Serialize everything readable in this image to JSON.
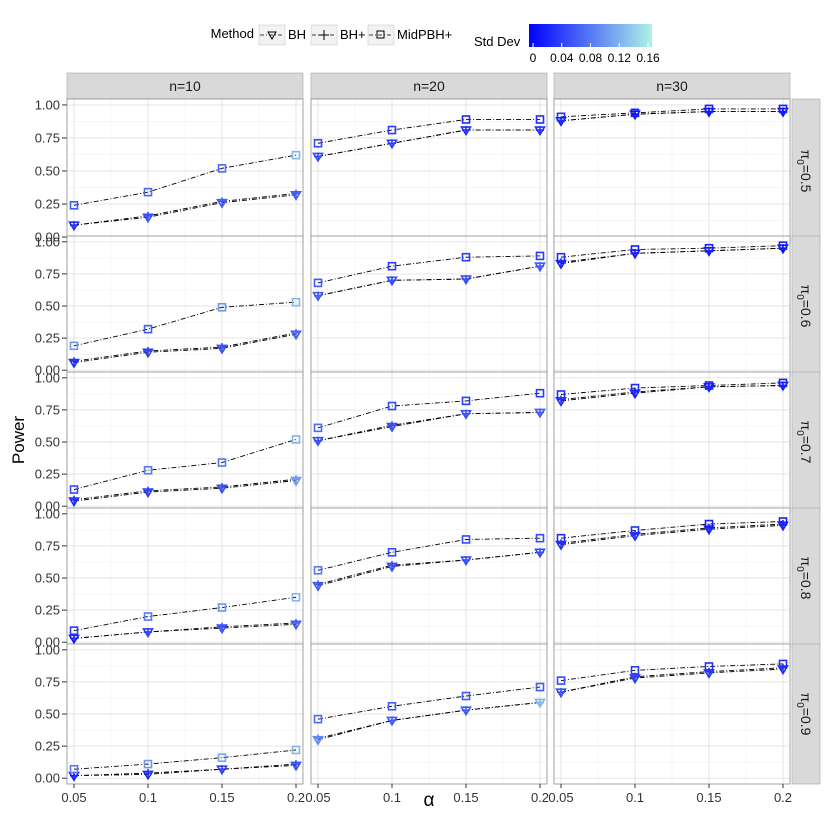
{
  "chart_data": {
    "type": "line",
    "xlabel": "α",
    "ylabel": "Power",
    "x": [
      0.05,
      0.1,
      0.15,
      0.2
    ],
    "x_tick_labels": [
      "0.05",
      "0.1",
      "0.15",
      "0.2"
    ],
    "ylim": [
      0,
      1
    ],
    "y_ticks": [
      0,
      0.25,
      0.5,
      0.75,
      1
    ],
    "y_tick_labels": [
      "0.00",
      "0.25",
      "0.50",
      "0.75",
      "1.00"
    ],
    "grid": true,
    "columns": [
      "n=10",
      "n=20",
      "n=30"
    ],
    "rows": [
      {
        "pi": "0.5",
        "prefix": "π",
        "sub": "0",
        "label": "π0=0.5"
      },
      {
        "pi": "0.6",
        "prefix": "π",
        "sub": "0",
        "label": "π0=0.6"
      },
      {
        "pi": "0.7",
        "prefix": "π",
        "sub": "0",
        "label": "π0=0.7"
      },
      {
        "pi": "0.8",
        "prefix": "π",
        "sub": "0",
        "label": "π0=0.8"
      },
      {
        "pi": "0.9",
        "prefix": "π",
        "sub": "0",
        "label": "π0=0.9"
      }
    ],
    "legend": {
      "method_title": "Method",
      "methods": [
        "BH",
        "BH+",
        "MidPBH+"
      ],
      "color_title": "Std Dev",
      "color_ticks": [
        "0",
        "0.04",
        "0.08",
        "0.12",
        "0.16"
      ],
      "color_range": [
        0,
        0.16
      ],
      "color_low": "#0000ff",
      "color_high": "#aef2e8",
      "placement": "top"
    },
    "panels": [
      {
        "row": 0,
        "col": 0,
        "series": [
          {
            "name": "BH",
            "values": [
              0.09,
              0.15,
              0.26,
              0.32
            ],
            "sd": [
              0.03,
              0.05,
              0.06,
              0.06
            ]
          },
          {
            "name": "BH+",
            "values": [
              0.09,
              0.16,
              0.27,
              0.33
            ],
            "sd": [
              0.03,
              0.05,
              0.06,
              0.06
            ]
          },
          {
            "name": "MidPBH+",
            "values": [
              0.24,
              0.34,
              0.52,
              0.62
            ],
            "sd": [
              0.06,
              0.07,
              0.07,
              0.12
            ]
          }
        ]
      },
      {
        "row": 0,
        "col": 1,
        "series": [
          {
            "name": "BH",
            "values": [
              0.61,
              0.71,
              0.81,
              0.81
            ],
            "sd": [
              0.05,
              0.04,
              0.03,
              0.03
            ]
          },
          {
            "name": "BH+",
            "values": [
              0.61,
              0.71,
              0.81,
              0.81
            ],
            "sd": [
              0.05,
              0.04,
              0.03,
              0.03
            ]
          },
          {
            "name": "MidPBH+",
            "values": [
              0.71,
              0.81,
              0.89,
              0.89
            ],
            "sd": [
              0.05,
              0.04,
              0.03,
              0.03
            ]
          }
        ]
      },
      {
        "row": 0,
        "col": 2,
        "series": [
          {
            "name": "BH",
            "values": [
              0.88,
              0.93,
              0.95,
              0.95
            ],
            "sd": [
              0.02,
              0.01,
              0.01,
              0.01
            ]
          },
          {
            "name": "BH+",
            "values": [
              0.88,
              0.93,
              0.95,
              0.95
            ],
            "sd": [
              0.02,
              0.01,
              0.01,
              0.01
            ]
          },
          {
            "name": "MidPBH+",
            "values": [
              0.91,
              0.94,
              0.97,
              0.97
            ],
            "sd": [
              0.03,
              0.02,
              0.02,
              0.02
            ]
          }
        ]
      },
      {
        "row": 1,
        "col": 0,
        "series": [
          {
            "name": "BH",
            "values": [
              0.06,
              0.14,
              0.17,
              0.28
            ],
            "sd": [
              0.03,
              0.04,
              0.05,
              0.06
            ]
          },
          {
            "name": "BH+",
            "values": [
              0.07,
              0.15,
              0.18,
              0.29
            ],
            "sd": [
              0.03,
              0.04,
              0.05,
              0.07
            ]
          },
          {
            "name": "MidPBH+",
            "values": [
              0.19,
              0.32,
              0.49,
              0.53
            ],
            "sd": [
              0.1,
              0.06,
              0.1,
              0.12
            ]
          }
        ]
      },
      {
        "row": 1,
        "col": 1,
        "series": [
          {
            "name": "BH",
            "values": [
              0.58,
              0.7,
              0.71,
              0.81
            ],
            "sd": [
              0.06,
              0.05,
              0.05,
              0.06
            ]
          },
          {
            "name": "BH+",
            "values": [
              0.58,
              0.7,
              0.71,
              0.81
            ],
            "sd": [
              0.06,
              0.05,
              0.05,
              0.06
            ]
          },
          {
            "name": "MidPBH+",
            "values": [
              0.68,
              0.81,
              0.88,
              0.89
            ],
            "sd": [
              0.06,
              0.04,
              0.04,
              0.04
            ]
          }
        ]
      },
      {
        "row": 1,
        "col": 2,
        "series": [
          {
            "name": "BH",
            "values": [
              0.83,
              0.91,
              0.93,
              0.95
            ],
            "sd": [
              0.02,
              0.02,
              0.02,
              0.01
            ]
          },
          {
            "name": "BH+",
            "values": [
              0.84,
              0.91,
              0.93,
              0.95
            ],
            "sd": [
              0.02,
              0.02,
              0.02,
              0.01
            ]
          },
          {
            "name": "MidPBH+",
            "values": [
              0.88,
              0.94,
              0.95,
              0.97
            ],
            "sd": [
              0.03,
              0.02,
              0.02,
              0.02
            ]
          }
        ]
      },
      {
        "row": 2,
        "col": 0,
        "series": [
          {
            "name": "BH",
            "values": [
              0.04,
              0.11,
              0.14,
              0.2
            ],
            "sd": [
              0.03,
              0.04,
              0.05,
              0.1
            ]
          },
          {
            "name": "BH+",
            "values": [
              0.05,
              0.12,
              0.15,
              0.21
            ],
            "sd": [
              0.03,
              0.04,
              0.05,
              0.1
            ]
          },
          {
            "name": "MidPBH+",
            "values": [
              0.13,
              0.28,
              0.34,
              0.52
            ],
            "sd": [
              0.05,
              0.08,
              0.08,
              0.12
            ]
          }
        ]
      },
      {
        "row": 2,
        "col": 1,
        "series": [
          {
            "name": "BH",
            "values": [
              0.51,
              0.62,
              0.72,
              0.73
            ],
            "sd": [
              0.05,
              0.05,
              0.05,
              0.06
            ]
          },
          {
            "name": "BH+",
            "values": [
              0.51,
              0.63,
              0.72,
              0.73
            ],
            "sd": [
              0.05,
              0.05,
              0.05,
              0.06
            ]
          },
          {
            "name": "MidPBH+",
            "values": [
              0.61,
              0.78,
              0.82,
              0.88
            ],
            "sd": [
              0.07,
              0.05,
              0.04,
              0.04
            ]
          }
        ]
      },
      {
        "row": 2,
        "col": 2,
        "series": [
          {
            "name": "BH",
            "values": [
              0.82,
              0.88,
              0.93,
              0.94
            ],
            "sd": [
              0.03,
              0.02,
              0.02,
              0.02
            ]
          },
          {
            "name": "BH+",
            "values": [
              0.83,
              0.89,
              0.93,
              0.94
            ],
            "sd": [
              0.03,
              0.02,
              0.02,
              0.02
            ]
          },
          {
            "name": "MidPBH+",
            "values": [
              0.87,
              0.92,
              0.94,
              0.96
            ],
            "sd": [
              0.03,
              0.03,
              0.02,
              0.02
            ]
          }
        ]
      },
      {
        "row": 3,
        "col": 0,
        "series": [
          {
            "name": "BH",
            "values": [
              0.03,
              0.08,
              0.11,
              0.14
            ],
            "sd": [
              0.02,
              0.04,
              0.05,
              0.06
            ]
          },
          {
            "name": "BH+",
            "values": [
              0.03,
              0.08,
              0.12,
              0.15
            ],
            "sd": [
              0.02,
              0.04,
              0.05,
              0.06
            ]
          },
          {
            "name": "MidPBH+",
            "values": [
              0.09,
              0.2,
              0.27,
              0.35
            ],
            "sd": [
              0.04,
              0.08,
              0.1,
              0.12
            ]
          }
        ]
      },
      {
        "row": 3,
        "col": 1,
        "series": [
          {
            "name": "BH",
            "values": [
              0.44,
              0.59,
              0.64,
              0.7
            ],
            "sd": [
              0.06,
              0.05,
              0.05,
              0.05
            ]
          },
          {
            "name": "BH+",
            "values": [
              0.45,
              0.6,
              0.64,
              0.7
            ],
            "sd": [
              0.06,
              0.05,
              0.05,
              0.05
            ]
          },
          {
            "name": "MidPBH+",
            "values": [
              0.56,
              0.7,
              0.8,
              0.81
            ],
            "sd": [
              0.08,
              0.05,
              0.05,
              0.05
            ]
          }
        ]
      },
      {
        "row": 3,
        "col": 2,
        "series": [
          {
            "name": "BH",
            "values": [
              0.76,
              0.83,
              0.88,
              0.91
            ],
            "sd": [
              0.03,
              0.03,
              0.02,
              0.02
            ]
          },
          {
            "name": "BH+",
            "values": [
              0.77,
              0.84,
              0.89,
              0.92
            ],
            "sd": [
              0.03,
              0.03,
              0.02,
              0.02
            ]
          },
          {
            "name": "MidPBH+",
            "values": [
              0.81,
              0.87,
              0.92,
              0.94
            ],
            "sd": [
              0.03,
              0.03,
              0.02,
              0.02
            ]
          }
        ]
      },
      {
        "row": 4,
        "col": 0,
        "series": [
          {
            "name": "BH",
            "values": [
              0.02,
              0.03,
              0.07,
              0.1
            ],
            "sd": [
              0.02,
              0.03,
              0.04,
              0.05
            ]
          },
          {
            "name": "BH+",
            "values": [
              0.02,
              0.04,
              0.07,
              0.11
            ],
            "sd": [
              0.02,
              0.03,
              0.04,
              0.05
            ]
          },
          {
            "name": "MidPBH+",
            "values": [
              0.07,
              0.11,
              0.16,
              0.22
            ],
            "sd": [
              0.08,
              0.1,
              0.11,
              0.12
            ]
          }
        ]
      },
      {
        "row": 4,
        "col": 1,
        "series": [
          {
            "name": "BH",
            "values": [
              0.3,
              0.45,
              0.53,
              0.59
            ],
            "sd": [
              0.09,
              0.06,
              0.06,
              0.12
            ]
          },
          {
            "name": "BH+",
            "values": [
              0.31,
              0.45,
              0.53,
              0.59
            ],
            "sd": [
              0.09,
              0.06,
              0.06,
              0.12
            ]
          },
          {
            "name": "MidPBH+",
            "values": [
              0.46,
              0.56,
              0.64,
              0.71
            ],
            "sd": [
              0.07,
              0.06,
              0.06,
              0.06
            ]
          }
        ]
      },
      {
        "row": 4,
        "col": 2,
        "series": [
          {
            "name": "BH",
            "values": [
              0.67,
              0.78,
              0.82,
              0.85
            ],
            "sd": [
              0.05,
              0.04,
              0.04,
              0.03
            ]
          },
          {
            "name": "BH+",
            "values": [
              0.67,
              0.79,
              0.83,
              0.86
            ],
            "sd": [
              0.05,
              0.04,
              0.04,
              0.03
            ]
          },
          {
            "name": "MidPBH+",
            "values": [
              0.76,
              0.84,
              0.87,
              0.89
            ],
            "sd": [
              0.05,
              0.04,
              0.03,
              0.03
            ]
          }
        ]
      }
    ]
  }
}
